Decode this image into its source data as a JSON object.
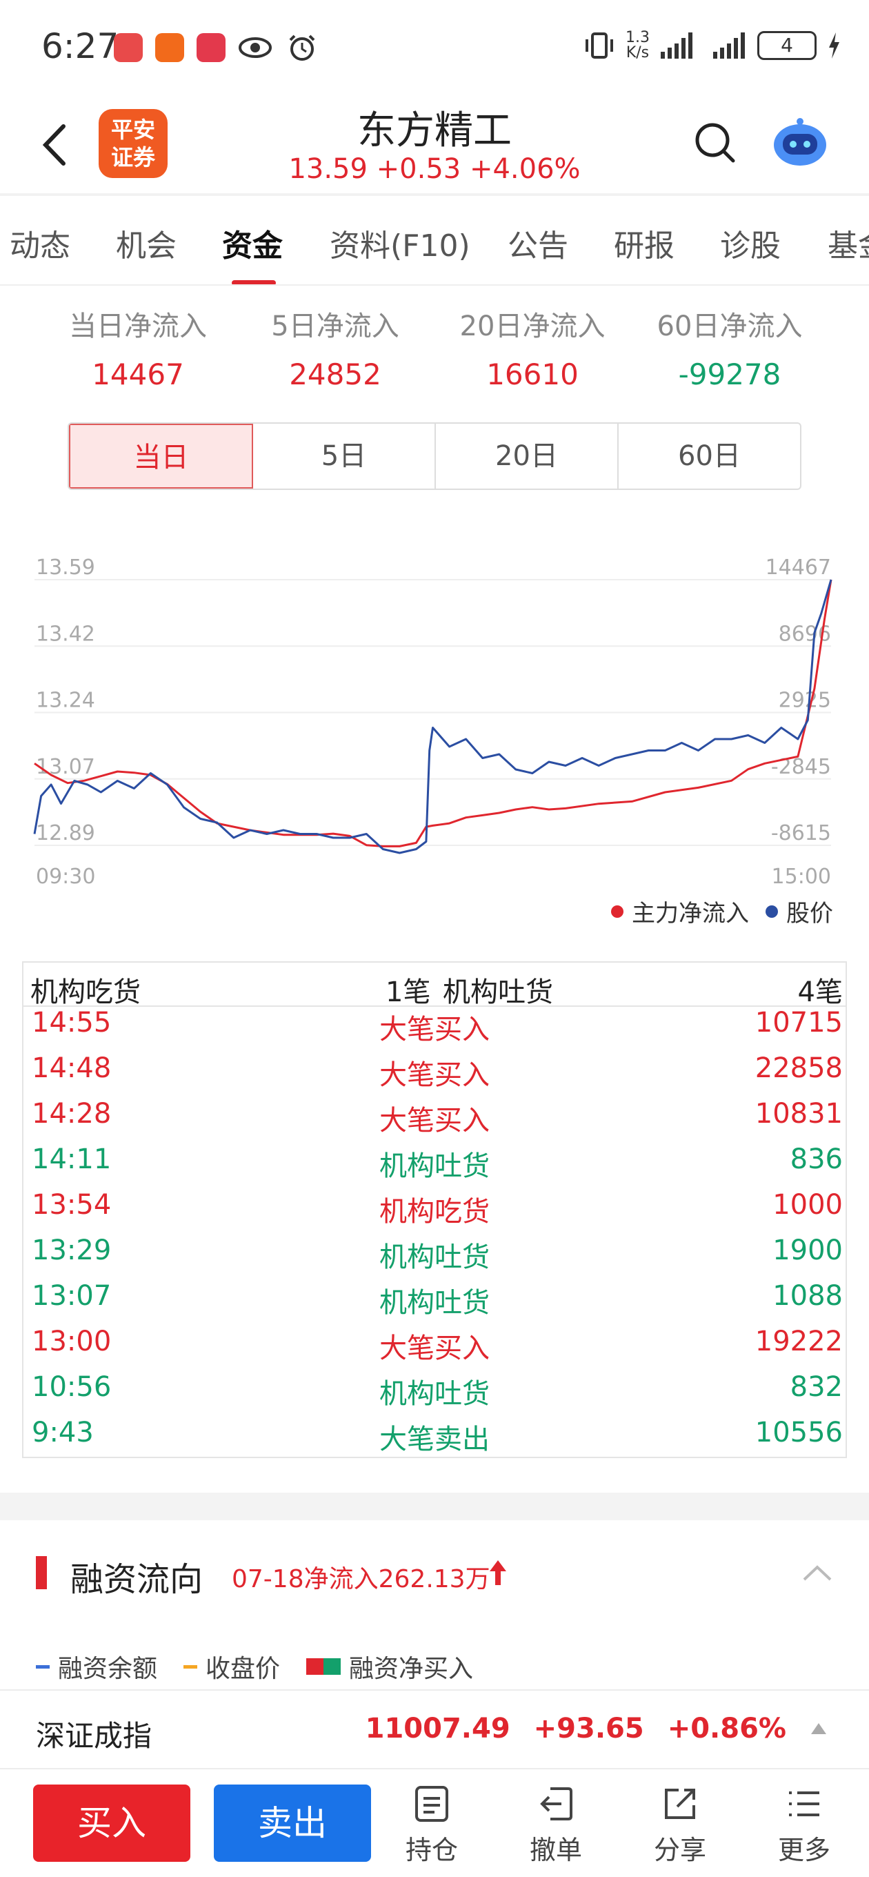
{
  "status_bar": {
    "time": "6:27",
    "net_speed_value": "1.3",
    "net_speed_unit": "K/s",
    "battery": "4"
  },
  "header": {
    "broker_logo_line1": "平安",
    "broker_logo_line2": "证券",
    "stock_name": "东方精工",
    "quote": "13.59 +0.53 +4.06%"
  },
  "tabs": [
    "动态",
    "机会",
    "资金",
    "资料(F10)",
    "公告",
    "研报",
    "诊股",
    "基金"
  ],
  "active_tab": "资金",
  "flow_summary": [
    {
      "label": "当日净流入",
      "value": "14467",
      "color": "red"
    },
    {
      "label": "5日净流入",
      "value": "24852",
      "color": "red"
    },
    {
      "label": "20日净流入",
      "value": "16610",
      "color": "red"
    },
    {
      "label": "60日净流入",
      "value": "-99278",
      "color": "green"
    }
  ],
  "period_tabs": [
    "当日",
    "5日",
    "20日",
    "60日"
  ],
  "active_period": "当日",
  "chart_data": {
    "type": "line",
    "x_start": "09:30",
    "x_end": "15:00",
    "y_left_ticks": [
      "13.59",
      "13.42",
      "13.24",
      "13.07",
      "12.89"
    ],
    "y_right_ticks": [
      "14467",
      "8696",
      "2925",
      "-2845",
      "-8615"
    ],
    "legend": [
      "主力净流入",
      "股价"
    ],
    "colors": {
      "main_flow": "#e0262e",
      "price": "#2b4ea2"
    },
    "series": [
      {
        "name": "主力净流入",
        "axis": "right",
        "x": [
          0,
          5,
          10,
          15,
          20,
          25,
          30,
          35,
          40,
          45,
          50,
          55,
          60,
          65,
          70,
          75,
          80,
          85,
          90,
          95,
          100,
          105,
          110,
          115,
          118,
          120,
          125,
          130,
          135,
          140,
          145,
          150,
          155,
          160,
          170,
          180,
          190,
          200,
          210,
          215,
          220,
          230,
          235,
          238,
          240
        ],
        "values": [
          -1500,
          -2500,
          -3200,
          -3000,
          -2600,
          -2200,
          -2300,
          -2500,
          -3300,
          -4500,
          -5700,
          -6700,
          -7000,
          -7300,
          -7500,
          -7700,
          -7700,
          -7700,
          -7600,
          -7800,
          -8600,
          -8700,
          -8700,
          -8400,
          -7000,
          -6900,
          -6700,
          -6200,
          -6000,
          -5800,
          -5500,
          -5300,
          -5500,
          -5400,
          -5000,
          -4800,
          -4000,
          -3600,
          -3000,
          -2000,
          -1500,
          -900,
          5000,
          11000,
          14467
        ]
      },
      {
        "name": "股价",
        "axis": "left",
        "x": [
          0,
          2,
          5,
          8,
          12,
          16,
          20,
          25,
          30,
          35,
          40,
          45,
          50,
          55,
          60,
          65,
          70,
          75,
          80,
          85,
          90,
          95,
          100,
          105,
          110,
          115,
          118,
          119,
          120,
          125,
          130,
          135,
          140,
          145,
          150,
          155,
          160,
          165,
          170,
          175,
          180,
          185,
          190,
          195,
          200,
          205,
          210,
          215,
          220,
          225,
          230,
          233,
          235,
          237,
          240
        ],
        "values": [
          12.92,
          13.02,
          13.05,
          13.0,
          13.06,
          13.05,
          13.03,
          13.06,
          13.04,
          13.08,
          13.05,
          12.99,
          12.96,
          12.95,
          12.91,
          12.93,
          12.92,
          12.93,
          12.92,
          12.92,
          12.91,
          12.91,
          12.92,
          12.88,
          12.87,
          12.88,
          12.9,
          13.14,
          13.2,
          13.15,
          13.17,
          13.12,
          13.13,
          13.09,
          13.08,
          13.11,
          13.1,
          13.12,
          13.1,
          13.12,
          13.13,
          13.14,
          13.14,
          13.16,
          13.14,
          13.17,
          13.17,
          13.18,
          13.16,
          13.2,
          13.17,
          13.22,
          13.45,
          13.5,
          13.59
        ]
      }
    ]
  },
  "trades": {
    "header_left": "机构吃货",
    "header_left_count": "1笔",
    "header_right": "机构吐货",
    "header_right_count": "4笔",
    "rows": [
      {
        "time": "14:55",
        "type": "大笔买入",
        "volume": "10715",
        "color": "red"
      },
      {
        "time": "14:48",
        "type": "大笔买入",
        "volume": "22858",
        "color": "red"
      },
      {
        "time": "14:28",
        "type": "大笔买入",
        "volume": "10831",
        "color": "red"
      },
      {
        "time": "14:11",
        "type": "机构吐货",
        "volume": "836",
        "color": "green"
      },
      {
        "time": "13:54",
        "type": "机构吃货",
        "volume": "1000",
        "color": "red"
      },
      {
        "time": "13:29",
        "type": "机构吐货",
        "volume": "1900",
        "color": "green"
      },
      {
        "time": "13:07",
        "type": "机构吐货",
        "volume": "1088",
        "color": "green"
      },
      {
        "time": "13:00",
        "type": "大笔买入",
        "volume": "19222",
        "color": "red"
      },
      {
        "time": "10:56",
        "type": "机构吐货",
        "volume": "832",
        "color": "green"
      },
      {
        "time": "9:43",
        "type": "大笔卖出",
        "volume": "10556",
        "color": "green"
      }
    ]
  },
  "margin": {
    "title": "融资流向",
    "summary": "07-18净流入262.13万",
    "legend": [
      {
        "label": "融资余额",
        "color": "#3b6fd8"
      },
      {
        "label": "收盘价",
        "color": "#f5a623"
      },
      {
        "label": "融资净买入",
        "color": "#e0262e"
      }
    ]
  },
  "ticker": {
    "name": "深证成指",
    "value": "11007.49",
    "change": "+93.65",
    "pct": "+0.86%"
  },
  "toolbar": {
    "buy": "买入",
    "sell": "卖出",
    "items": [
      {
        "label": "持仓",
        "icon": "holdings-icon"
      },
      {
        "label": "撤单",
        "icon": "cancel-order-icon"
      },
      {
        "label": "分享",
        "icon": "share-icon"
      },
      {
        "label": "更多",
        "icon": "more-icon"
      }
    ]
  },
  "colors": {
    "accent_red": "#e0262e",
    "accent_green": "#13a06b",
    "buy": "#e8232a",
    "sell": "#1a73e8"
  }
}
